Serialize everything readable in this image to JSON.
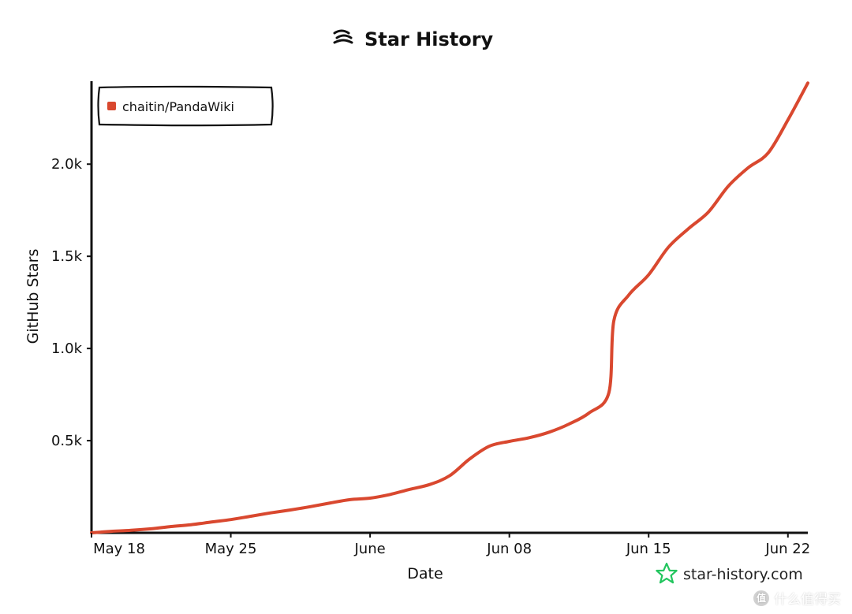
{
  "header": {
    "title": "Star History",
    "logo_icon": "star-history-logo-icon"
  },
  "watermark": {
    "text": "star-history.com",
    "icon": "star-outline-icon",
    "icon_color": "#22c55e"
  },
  "smzdm": {
    "badge_text": "值",
    "text": "什么值得买"
  },
  "chart_data": {
    "type": "line",
    "title": "Star History",
    "xlabel": "Date",
    "ylabel": "GitHub Stars",
    "x_ticks": [
      "May 18",
      "May 25",
      "June",
      "Jun 08",
      "Jun 15",
      "Jun 22"
    ],
    "y_ticks": [
      "0.5k",
      "1.0k",
      "1.5k",
      "2.0k"
    ],
    "y_tick_values": [
      500,
      1000,
      1500,
      2000
    ],
    "ylim": [
      0,
      2450
    ],
    "xlim": [
      "2025-05-18",
      "2025-06-23"
    ],
    "grid": false,
    "legend_position": "top-left",
    "series": [
      {
        "name": "chaitin/PandaWiki",
        "color": "#d9482f",
        "points": [
          {
            "x": "2025-05-18",
            "y": 0
          },
          {
            "x": "2025-05-19",
            "y": 8
          },
          {
            "x": "2025-05-20",
            "y": 14
          },
          {
            "x": "2025-05-21",
            "y": 22
          },
          {
            "x": "2025-05-22",
            "y": 34
          },
          {
            "x": "2025-05-23",
            "y": 44
          },
          {
            "x": "2025-05-24",
            "y": 58
          },
          {
            "x": "2025-05-25",
            "y": 72
          },
          {
            "x": "2025-05-26",
            "y": 90
          },
          {
            "x": "2025-05-27",
            "y": 108
          },
          {
            "x": "2025-05-28",
            "y": 124
          },
          {
            "x": "2025-05-29",
            "y": 142
          },
          {
            "x": "2025-05-30",
            "y": 162
          },
          {
            "x": "2025-05-31",
            "y": 180
          },
          {
            "x": "2025-06-01",
            "y": 188
          },
          {
            "x": "2025-06-02",
            "y": 208
          },
          {
            "x": "2025-06-03",
            "y": 236
          },
          {
            "x": "2025-06-04",
            "y": 262
          },
          {
            "x": "2025-06-05",
            "y": 310
          },
          {
            "x": "2025-06-06",
            "y": 400
          },
          {
            "x": "2025-06-07",
            "y": 470
          },
          {
            "x": "2025-06-08",
            "y": 496
          },
          {
            "x": "2025-06-09",
            "y": 516
          },
          {
            "x": "2025-06-10",
            "y": 546
          },
          {
            "x": "2025-06-11",
            "y": 590
          },
          {
            "x": "2025-06-12",
            "y": 650
          },
          {
            "x": "2025-06-13",
            "y": 760
          },
          {
            "x": "2025-06-13T06:00",
            "y": 1150
          },
          {
            "x": "2025-06-14",
            "y": 1290
          },
          {
            "x": "2025-06-15",
            "y": 1400
          },
          {
            "x": "2025-06-16",
            "y": 1550
          },
          {
            "x": "2025-06-17",
            "y": 1650
          },
          {
            "x": "2025-06-18",
            "y": 1740
          },
          {
            "x": "2025-06-19",
            "y": 1880
          },
          {
            "x": "2025-06-20",
            "y": 1980
          },
          {
            "x": "2025-06-21",
            "y": 2060
          },
          {
            "x": "2025-06-22",
            "y": 2240
          },
          {
            "x": "2025-06-23",
            "y": 2440
          }
        ]
      }
    ]
  }
}
